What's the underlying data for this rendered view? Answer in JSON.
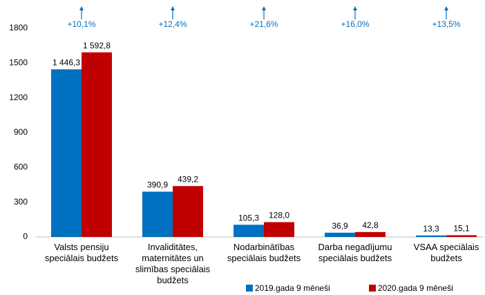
{
  "chart_data": {
    "type": "bar",
    "categories": [
      "Valsts pensiju\nspeciālais budžets",
      "Invaliditātes,\nmaternitātes un\nslimības speciālais\nbudžets",
      "Nodarbinātības\nspeciālais budžets",
      "Darba negadījumu\nspeciālais budžets",
      "VSAA speciālais\nbudžets"
    ],
    "series": [
      {
        "name": "2019.gada 9 mēneši",
        "color": "#0070c0",
        "values": [
          1446.3,
          390.9,
          105.3,
          36.9,
          13.3
        ],
        "value_labels": [
          "1 446,3",
          "390,9",
          "105,3",
          "36,9",
          "13,3"
        ]
      },
      {
        "name": "2020.gada 9 mēneši",
        "color": "#c00000",
        "values": [
          1592.8,
          439.2,
          128.0,
          42.8,
          15.1
        ],
        "value_labels": [
          "1 592,8",
          "439,2",
          "128,0",
          "42,8",
          "15,1"
        ]
      }
    ],
    "annotations": [
      "+10,1%",
      "+12,4%",
      "+21,6%",
      "+16,0%",
      "+13,5%"
    ],
    "ylim": [
      0,
      1800
    ],
    "yticks": [
      0,
      300,
      600,
      900,
      1200,
      1500,
      1800
    ],
    "grid": false,
    "legend": "bottom"
  }
}
